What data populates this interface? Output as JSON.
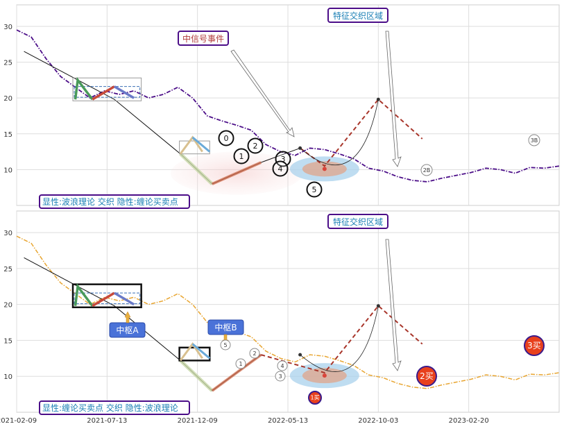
{
  "chart_data": [
    {
      "type": "line",
      "panel": "top",
      "xaxis_ticks": [
        "2021-02-09",
        "2021-07-13",
        "2021-12-09",
        "2022-05-13",
        "2022-10-03",
        "2023-02-20"
      ],
      "yaxis_ticks": [
        10,
        15,
        20,
        25,
        30
      ],
      "ylim": [
        5,
        33
      ],
      "grid": true,
      "annotations": {
        "region_label": "特征交织区域",
        "signal_label": "中信号事件",
        "bottom_label": "显性:波浪理论 交织 隐性:缠论买卖点",
        "wave_marks": [
          "0",
          "1",
          "2",
          "3",
          "4",
          "5"
        ],
        "trade_marks": [
          "2B",
          "3B"
        ]
      },
      "series": [
        {
          "values": [
            [
              0,
              29.5
            ],
            [
              3,
              28.5
            ],
            [
              6,
              25.5
            ],
            [
              9,
              23.0
            ],
            [
              12,
              21.5
            ],
            [
              15,
              20.0
            ],
            [
              18,
              21.0
            ],
            [
              21,
              20.5
            ],
            [
              24,
              21.0
            ],
            [
              27,
              20.0
            ],
            [
              30,
              20.5
            ],
            [
              33,
              21.5
            ],
            [
              36,
              20.0
            ],
            [
              39,
              17.5
            ],
            [
              42,
              16.8
            ],
            [
              45,
              16.2
            ],
            [
              48,
              15.5
            ],
            [
              51,
              13.5
            ],
            [
              54,
              12.5
            ],
            [
              57,
              12.0
            ],
            [
              60,
              13.0
            ],
            [
              63,
              12.8
            ],
            [
              66,
              12.2
            ],
            [
              69,
              11.5
            ],
            [
              72,
              10.2
            ],
            [
              75,
              9.8
            ],
            [
              78,
              9.0
            ],
            [
              81,
              8.5
            ],
            [
              84,
              8.3
            ],
            [
              87,
              8.8
            ],
            [
              90,
              9.2
            ],
            [
              93,
              9.6
            ],
            [
              96,
              10.2
            ],
            [
              99,
              10.0
            ],
            [
              102,
              9.5
            ],
            [
              105,
              10.3
            ],
            [
              108,
              10.2
            ],
            [
              111,
              10.5
            ]
          ]
        },
        {
          "values": [
            [
              1.5,
              26.5
            ],
            [
              20,
              19.8
            ],
            [
              33.5,
              12.2
            ],
            [
              40,
              8.0
            ],
            [
              50,
              11.0
            ],
            [
              58,
              13.0
            ]
          ]
        },
        {
          "values": [
            [
              58,
              13.0
            ],
            [
              63,
              10.5
            ],
            [
              74,
              19.8
            ],
            [
              83,
              14.3
            ]
          ]
        }
      ]
    },
    {
      "type": "line",
      "panel": "bottom",
      "xaxis_ticks": [
        "2021-02-09",
        "2021-07-13",
        "2021-12-09",
        "2022-05-13",
        "2022-10-03",
        "2023-02-20"
      ],
      "yaxis_ticks": [
        10,
        15,
        20,
        25,
        30
      ],
      "ylim": [
        5,
        33
      ],
      "grid": true,
      "annotations": {
        "region_label": "特征交织区域",
        "center_a": "中枢A",
        "center_b": "中枢B",
        "bottom_label": "显性:缠论买卖点 交织 隐性:波浪理论",
        "wave_marks": [
          "1",
          "2",
          "3",
          "4",
          "5"
        ],
        "trade_marks": [
          "1买",
          "2买",
          "3买"
        ]
      },
      "series": [
        {
          "values": [
            [
              0,
              29.5
            ],
            [
              3,
              28.5
            ],
            [
              6,
              25.5
            ],
            [
              9,
              23.0
            ],
            [
              12,
              21.5
            ],
            [
              15,
              20.0
            ],
            [
              18,
              21.0
            ],
            [
              21,
              20.5
            ],
            [
              24,
              21.0
            ],
            [
              27,
              20.0
            ],
            [
              30,
              20.5
            ],
            [
              33,
              21.5
            ],
            [
              36,
              20.0
            ],
            [
              39,
              17.5
            ],
            [
              42,
              16.8
            ],
            [
              45,
              16.2
            ],
            [
              48,
              15.5
            ],
            [
              51,
              13.5
            ],
            [
              54,
              12.5
            ],
            [
              57,
              12.0
            ],
            [
              60,
              13.0
            ],
            [
              63,
              12.8
            ],
            [
              66,
              12.2
            ],
            [
              69,
              11.5
            ],
            [
              72,
              10.2
            ],
            [
              75,
              9.8
            ],
            [
              78,
              9.0
            ],
            [
              81,
              8.5
            ],
            [
              84,
              8.3
            ],
            [
              87,
              8.8
            ],
            [
              90,
              9.2
            ],
            [
              93,
              9.6
            ],
            [
              96,
              10.2
            ],
            [
              99,
              10.0
            ],
            [
              102,
              9.5
            ],
            [
              105,
              10.3
            ],
            [
              108,
              10.2
            ],
            [
              111,
              10.5
            ]
          ]
        },
        {
          "values": [
            [
              1.5,
              26.5
            ],
            [
              20,
              19.8
            ],
            [
              33.5,
              12.2
            ],
            [
              40,
              8.0
            ],
            [
              50,
              13.0
            ]
          ]
        },
        {
          "values": [
            [
              50,
              13.0
            ],
            [
              63,
              10.5
            ],
            [
              74,
              19.8
            ],
            [
              83,
              14.5
            ]
          ]
        }
      ]
    }
  ]
}
